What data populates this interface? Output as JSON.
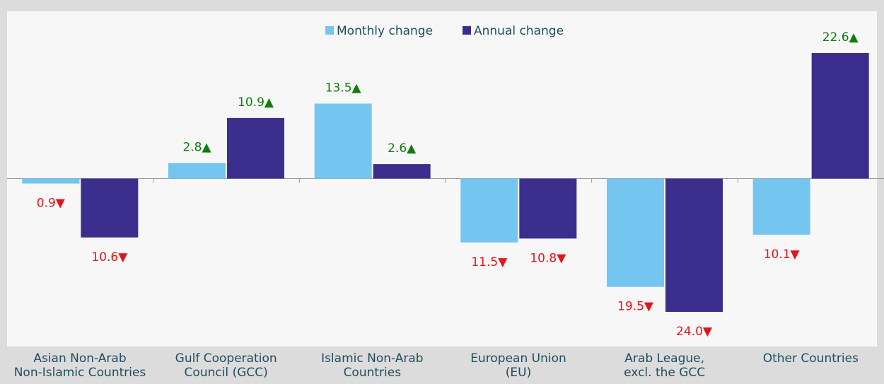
{
  "chart_data": {
    "type": "bar",
    "categories": [
      "Asian Non-Arab\nNon-Islamic Countries",
      "Gulf Cooperation\nCouncil (GCC)",
      "Islamic Non-Arab\nCountries",
      "European Union\n(EU)",
      "Arab League,\nexcl. the GCC",
      "Other Countries"
    ],
    "series": [
      {
        "name": "Monthly change",
        "color": "#74c6f0",
        "values": [
          -0.9,
          2.8,
          13.5,
          -11.5,
          -19.5,
          -10.1
        ],
        "value_labels": [
          "0.9▼",
          "2.8▲",
          "13.5▲",
          "11.5▼",
          "19.5▼",
          "10.1▼"
        ]
      },
      {
        "name": "Annual change",
        "color": "#3b2e8c",
        "values": [
          -10.6,
          10.9,
          2.6,
          -10.8,
          -24.0,
          22.6
        ],
        "value_labels": [
          "10.6▼",
          "10.9▲",
          "2.6▲",
          "10.8▼",
          "24.0▼",
          "22.6▲"
        ]
      }
    ],
    "legend": "top"
  }
}
